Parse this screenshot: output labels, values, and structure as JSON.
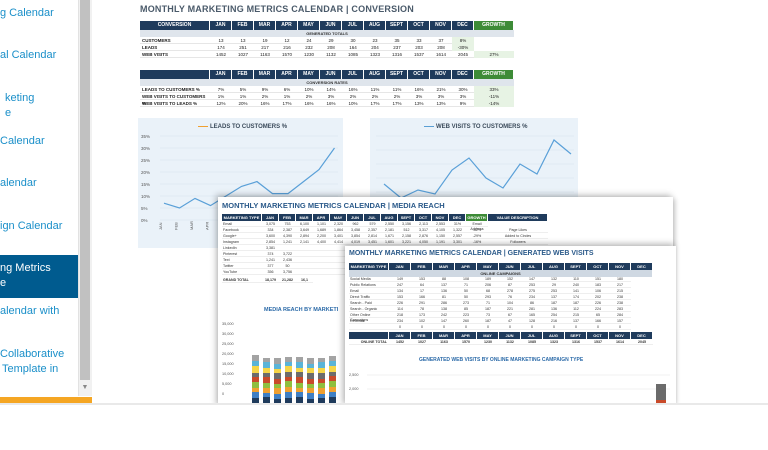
{
  "sidebar": {
    "items": [
      {
        "lines": [
          "g Calendar"
        ]
      },
      {
        "lines": [
          "al Calendar"
        ]
      },
      {
        "lines": [
          "keting",
          "e"
        ]
      },
      {
        "lines": [
          "Calendar"
        ]
      },
      {
        "lines": [
          "alendar"
        ]
      },
      {
        "lines": [
          "ign Calendar"
        ]
      },
      {
        "lines": [
          "ng Metrics",
          "e"
        ],
        "active": true
      },
      {
        "lines": [
          "alendar with"
        ]
      },
      {
        "lines": [
          "Collaborative",
          "Template in"
        ]
      }
    ]
  },
  "sheet1": {
    "title": "MONTHLY MARKETING METRICS CALENDAR   |   CONVERSION",
    "table1": {
      "headers": [
        "CONVERSION",
        "JAN",
        "FEB",
        "MAR",
        "APR",
        "MAY",
        "JUN",
        "JUL",
        "AUG",
        "SEPT",
        "OCT",
        "NOV",
        "DEC",
        "GROWTH"
      ],
      "subheader": "GENERATED TOTALS",
      "rows": [
        [
          "CUSTOMERS",
          "13",
          "13",
          "19",
          "12",
          "24",
          "29",
          "30",
          "23",
          "35",
          "33",
          "37",
          "8%"
        ],
        [
          "LEADS",
          "174",
          "251",
          "217",
          "216",
          "232",
          "208",
          "164",
          "204",
          "237",
          "203",
          "208",
          "-30%"
        ],
        [
          "WEB VISITS",
          "1452",
          "1027",
          "1163",
          "1570",
          "1230",
          "1132",
          "1085",
          "1323",
          "1316",
          "1537",
          "1614",
          "2045",
          "27%"
        ]
      ]
    },
    "table2": {
      "headers": [
        "",
        "JAN",
        "FEB",
        "MAR",
        "APR",
        "MAY",
        "JUN",
        "JUL",
        "AUG",
        "SEPT",
        "OCT",
        "NOV",
        "DEC",
        "GROWTH"
      ],
      "subheader": "CONVERSION RATES",
      "rows": [
        [
          "LEADS TO CUSTOMERS %",
          "7%",
          "5%",
          "9%",
          "6%",
          "10%",
          "14%",
          "16%",
          "11%",
          "11%",
          "16%",
          "21%",
          "30%",
          "33%"
        ],
        [
          "WEB VISITS TO CUSTOMERS %",
          "1%",
          "1%",
          "2%",
          "1%",
          "2%",
          "3%",
          "2%",
          "2%",
          "2%",
          "3%",
          "3%",
          "3%",
          "-11%"
        ],
        [
          "WEB VISITS TO LEADS %",
          "12%",
          "20%",
          "16%",
          "17%",
          "16%",
          "16%",
          "10%",
          "17%",
          "17%",
          "13%",
          "13%",
          "9%",
          "-14%"
        ]
      ]
    },
    "chart1": {
      "title": "LEADS TO CUSTOMERS %",
      "yticks": [
        "35%",
        "30%",
        "25%",
        "20%",
        "15%",
        "10%",
        "5%",
        "0%"
      ],
      "xticks": [
        "JAN",
        "FEB",
        "MAR",
        "APR"
      ]
    },
    "chart2": {
      "title": "WEB VISITS TO CUSTOMERS %"
    }
  },
  "sheet2": {
    "title": "MONTHLY MARKETING METRICS CALENDAR   |   MEDIA REACH",
    "headers": [
      "MARKETING TYPE",
      "JAN",
      "FEB",
      "MAR",
      "APR",
      "MAY",
      "JUN",
      "JUL",
      "AUG",
      "SEPT",
      "OCT",
      "NOV",
      "DEC",
      "GROWTH",
      "VALUE DESCRIPTION"
    ],
    "rows": [
      [
        "Email",
        "3,075",
        "753",
        "6,100",
        "1,101",
        "2,320",
        "962",
        "579",
        "2,550",
        "3,156",
        "2,113",
        "2,553",
        "31%",
        "Email Address"
      ],
      [
        "Facebook",
        "334",
        "2,387",
        "3,649",
        "1,689",
        "1,864",
        "3,458",
        "2,357",
        "2,181",
        "512",
        "3,317",
        "4,105",
        "1,322",
        "-62%",
        "Page Likes"
      ],
      [
        "Google+",
        "3,600",
        "4,390",
        "2,894",
        "2,200",
        "3,401",
        "3,854",
        "2,814",
        "1,671",
        "2,158",
        "2,876",
        "1,150",
        "2,557",
        "-29%",
        "Added to Circles"
      ],
      [
        "Instagram",
        "2,854",
        "1,241",
        "2,141",
        "4,400",
        "4,414",
        "4,019",
        "3,451",
        "1,601",
        "3,221",
        "4,050",
        "1,191",
        "3,301",
        "-16%",
        "Followers"
      ],
      [
        "LinkedIn",
        "3,381",
        "",
        "",
        "",
        "",
        "",
        "",
        "",
        "",
        "",
        "",
        "",
        "",
        ""
      ],
      [
        "Pinterest",
        "374",
        "3,722",
        "",
        "",
        "",
        "",
        "",
        "",
        "",
        "",
        "",
        "",
        "",
        ""
      ],
      [
        "Text",
        "1,241",
        "2,436",
        "",
        "",
        "",
        "",
        "",
        "",
        "",
        "",
        "",
        "",
        "",
        ""
      ],
      [
        "Twitter",
        "377",
        "50",
        "",
        "",
        "",
        "",
        "",
        "",
        "",
        "",
        "",
        "",
        "",
        ""
      ],
      [
        "YouTube",
        "356",
        "3,756",
        "",
        "",
        "",
        "",
        "",
        "",
        "",
        "",
        "",
        "",
        "",
        ""
      ]
    ],
    "total_label": "GRAND TOTAL",
    "totals": [
      "18,179",
      "21,282",
      "16,1"
    ],
    "chart_title": "MEDIA REACH BY MARKETI",
    "yticks": [
      "35,000",
      "30,000",
      "25,000",
      "20,000",
      "15,000",
      "10,000",
      "5,000",
      "0"
    ]
  },
  "sheet3": {
    "title": "MONTHLY MARKETING METRICS CALENDAR   |   GENERATED WEB VISITS",
    "headers": [
      "MARKETING TYPE",
      "JAN",
      "FEB",
      "MAR",
      "APR",
      "MAY",
      "JUN",
      "JUL",
      "AUG",
      "SEPT",
      "OCT",
      "NOV",
      "DEC"
    ],
    "subheader": "ONLINE CAMPAIGNS",
    "rows": [
      [
        "Social Media",
        "149",
        "153",
        "88",
        "108",
        "189",
        "152",
        "147",
        "132",
        "110",
        "151",
        "180"
      ],
      [
        "Public Relations",
        "247",
        "64",
        "137",
        "71",
        "206",
        "87",
        "253",
        "29",
        "240",
        "183",
        "217"
      ],
      [
        "Email",
        "134",
        "17",
        "136",
        "50",
        "68",
        "278",
        "275",
        "253",
        "141",
        "106",
        "215"
      ],
      [
        "Direct Traffic",
        "153",
        "166",
        "81",
        "50",
        "293",
        "76",
        "234",
        "137",
        "174",
        "202",
        "238"
      ],
      [
        "Search - Paid",
        "226",
        "291",
        "286",
        "273",
        "71",
        "104",
        "86",
        "187",
        "187",
        "226",
        "238"
      ],
      [
        "Search - Organic",
        "114",
        "78",
        "138",
        "85",
        "187",
        "221",
        "281",
        "136",
        "112",
        "224",
        "283"
      ],
      [
        "Other Online Campaigns",
        "218",
        "173",
        "242",
        "223",
        "73",
        "67",
        "165",
        "254",
        "215",
        "65",
        "284"
      ],
      [
        "Referrals",
        "234",
        "102",
        "147",
        "260",
        "187",
        "47",
        "128",
        "216",
        "137",
        "166",
        "157"
      ],
      [
        "",
        "0",
        "0",
        "0",
        "0",
        "0",
        "0",
        "0",
        "0",
        "0",
        "0",
        "0"
      ]
    ],
    "total_label": "ONLINE TOTAL",
    "totals": [
      "1452",
      "1027",
      "1163",
      "1570",
      "1230",
      "1132",
      "1085",
      "1323",
      "1316",
      "1537",
      "1614",
      "2045"
    ],
    "chart_title": "GENERATED WEB VISITS BY ONLINE MARKETING CAMPAIGN TYPE",
    "yticks": [
      "2,500",
      "2,000"
    ]
  }
}
